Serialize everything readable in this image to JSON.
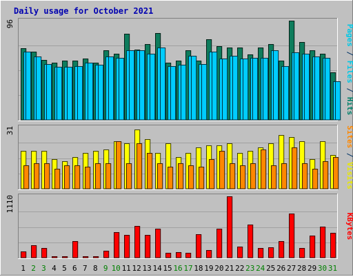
{
  "chart_data": {
    "type": "bar",
    "title": "Daily usage for October 2021",
    "categories": [
      "1",
      "2",
      "3",
      "4",
      "5",
      "6",
      "7",
      "8",
      "9",
      "10",
      "11",
      "12",
      "13",
      "14",
      "15",
      "16",
      "17",
      "18",
      "19",
      "20",
      "21",
      "22",
      "23",
      "24",
      "25",
      "26",
      "27",
      "28",
      "29",
      "30",
      "31"
    ],
    "weekend_days": [
      "2",
      "3",
      "9",
      "10",
      "16",
      "17",
      "23",
      "24",
      "30",
      "31"
    ],
    "panels": [
      {
        "id": "hits",
        "scale_label": "96",
        "ymax": 96,
        "axis_labels": [
          {
            "text": "Pages",
            "color": "#00c8e6"
          },
          {
            "text": " / ",
            "color": "#003366"
          },
          {
            "text": "Files",
            "color": "#00c8e6"
          },
          {
            "text": " / ",
            "color": "#003366"
          },
          {
            "text": "Hits",
            "color": "#00806a"
          }
        ],
        "series": [
          {
            "name": "Hits",
            "color": "#0e7c5c",
            "values": [
              69,
              66,
              58,
              55,
              57,
              57,
              59,
              55,
              67,
              64,
              83,
              68,
              73,
              84,
              55,
              57,
              67,
              57,
              78,
              71,
              70,
              70,
              63,
              70,
              73,
              57,
              96,
              75,
              67,
              64,
              46
            ]
          },
          {
            "name": "Files",
            "color": "#00ccff",
            "values": [
              66,
              61,
              54,
              51,
              51,
              52,
              55,
              53,
              61,
              60,
              67,
              67,
              64,
              70,
              52,
              53,
              62,
              54,
              66,
              59,
              62,
              59,
              60,
              60,
              67,
              52,
              65,
              64,
              61,
              60,
              37
            ]
          },
          {
            "name": "Pages",
            "color": "#00ccff",
            "values": [
              66,
              61,
              54,
              51,
              51,
              52,
              55,
              53,
              61,
              60,
              67,
              67,
              64,
              70,
              52,
              53,
              62,
              54,
              66,
              59,
              62,
              59,
              60,
              60,
              67,
              52,
              65,
              64,
              61,
              60,
              37
            ]
          }
        ]
      },
      {
        "id": "visits",
        "scale_label": "31",
        "ymax": 31,
        "axis_labels": [
          {
            "text": "Sites",
            "color": "#ff8800"
          },
          {
            "text": " / ",
            "color": "#003366"
          },
          {
            "text": "Visits",
            "color": "#e8e800"
          }
        ],
        "series": [
          {
            "name": "Visits",
            "color": "#ffff00",
            "values": [
              19,
              19,
              19,
              15,
              14,
              16,
              18,
              19,
              20,
              24,
              23,
              30,
              25,
              18,
              23,
              16,
              18,
              21,
              22,
              22,
              23,
              18,
              19,
              21,
              23,
              27,
              26,
              24,
              15,
              24,
              17
            ]
          },
          {
            "name": "Sites",
            "color": "#ff8800",
            "values": [
              12,
              13,
              13,
              10,
              12,
              12,
              11,
              13,
              13,
              24,
              13,
              23,
              18,
              13,
              11,
              13,
              12,
              11,
              15,
              19,
              13,
              12,
              13,
              20,
              12,
              13,
              21,
              13,
              10,
              14,
              16
            ]
          }
        ]
      },
      {
        "id": "kbytes",
        "scale_label": "1110",
        "ymax": 1110,
        "axis_labels": [
          {
            "text": "KBytes",
            "color": "#ff0000"
          }
        ],
        "series": [
          {
            "name": "KBytes",
            "color": "#ff0000",
            "values": [
              110,
              230,
              170,
              30,
              30,
              300,
              30,
              30,
              120,
              460,
              410,
              570,
              410,
              530,
              90,
              100,
              90,
              430,
              140,
              520,
              1110,
              200,
              600,
              180,
              190,
              300,
              800,
              170,
              400,
              560,
              450
            ]
          }
        ]
      }
    ]
  }
}
